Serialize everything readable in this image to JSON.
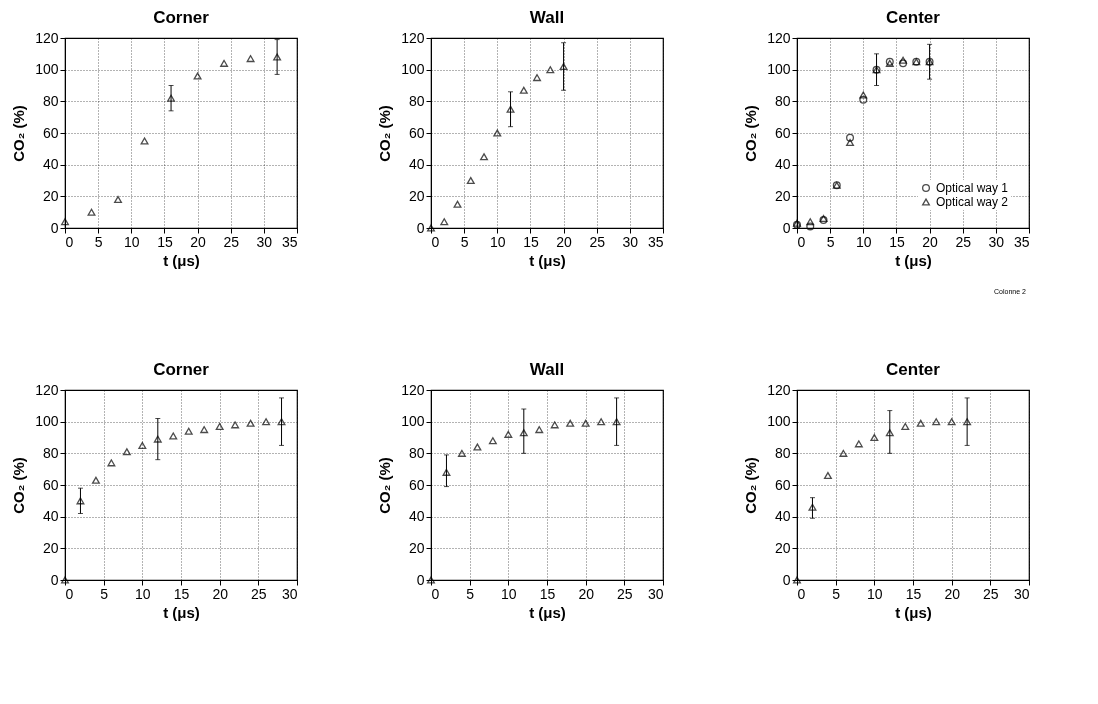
{
  "chart_data": [
    {
      "type": "scatter",
      "title": "Corner",
      "xlabel": "t (μs)",
      "ylabel": "CO₂ (%)",
      "xlim": [
        0,
        35
      ],
      "xticks": [
        0,
        5,
        10,
        15,
        20,
        25,
        30,
        35
      ],
      "ylim": [
        0,
        120
      ],
      "yticks": [
        0,
        20,
        40,
        60,
        80,
        100,
        120
      ],
      "grid": true,
      "marker": "triangle",
      "series": [
        {
          "color": "#000000",
          "x": [
            0,
            4,
            8,
            12,
            16,
            20,
            24,
            28,
            32
          ],
          "values": [
            4,
            10,
            18,
            55,
            82,
            96,
            104,
            107,
            108
          ],
          "errors": [
            null,
            null,
            null,
            null,
            [
              74,
              90
            ],
            null,
            null,
            null,
            [
              97,
              119
            ]
          ]
        }
      ]
    },
    {
      "type": "scatter",
      "title": "Wall",
      "xlabel": "t (μs)",
      "ylabel": "CO₂ (%)",
      "xlim": [
        0,
        35
      ],
      "xticks": [
        0,
        5,
        10,
        15,
        20,
        25,
        30,
        35
      ],
      "ylim": [
        0,
        120
      ],
      "yticks": [
        0,
        20,
        40,
        60,
        80,
        100,
        120
      ],
      "grid": true,
      "marker": "triangle",
      "series": [
        {
          "color": "#000000",
          "x": [
            0,
            2,
            4,
            6,
            8,
            10,
            12,
            14,
            16,
            18,
            20
          ],
          "values": [
            0,
            4,
            15,
            30,
            45,
            60,
            75,
            87,
            95,
            100,
            102
          ],
          "errors": [
            null,
            null,
            null,
            null,
            null,
            null,
            [
              64,
              86
            ],
            null,
            null,
            null,
            [
              87,
              117
            ]
          ]
        }
      ]
    },
    {
      "type": "scatter",
      "title": "Center",
      "xlabel": "t (μs)",
      "ylabel": "CO₂ (%)",
      "xlim": [
        0,
        35
      ],
      "xticks": [
        0,
        5,
        10,
        15,
        20,
        25,
        30,
        35
      ],
      "ylim": [
        0,
        120
      ],
      "yticks": [
        0,
        20,
        40,
        60,
        80,
        100,
        120
      ],
      "grid": true,
      "legend": "bottom right",
      "annotations": [
        "Colonne 2"
      ],
      "series": [
        {
          "name": "Optical way 1",
          "color": "#000000",
          "marker": "circle",
          "x": [
            0,
            2,
            4,
            6,
            8,
            10,
            12,
            14,
            16,
            18,
            20
          ],
          "values": [
            2,
            1,
            5,
            27,
            57,
            81,
            100,
            105,
            104,
            105,
            105
          ],
          "errors": [
            null,
            null,
            null,
            null,
            null,
            null,
            [
              90,
              110
            ],
            null,
            null,
            null,
            [
              94,
              116
            ]
          ]
        },
        {
          "name": "Optical way 2",
          "color": "#000000",
          "marker": "triangle",
          "x": [
            0,
            2,
            4,
            6,
            8,
            10,
            12,
            14,
            16,
            18,
            20
          ],
          "values": [
            3,
            4,
            6,
            27,
            54,
            84,
            100,
            104,
            106,
            105,
            105
          ]
        }
      ]
    },
    {
      "type": "scatter",
      "title": "Corner",
      "xlabel": "t (μs)",
      "ylabel": "CO₂ (%)",
      "xlim": [
        0,
        30
      ],
      "xticks": [
        0,
        5,
        10,
        15,
        20,
        25,
        30
      ],
      "ylim": [
        0,
        120
      ],
      "yticks": [
        0,
        20,
        40,
        60,
        80,
        100,
        120
      ],
      "grid": true,
      "marker": "triangle",
      "series": [
        {
          "color": "#000000",
          "x": [
            0,
            2,
            4,
            6,
            8,
            10,
            12,
            14,
            16,
            18,
            20,
            22,
            24,
            26,
            28
          ],
          "values": [
            0,
            50,
            63,
            74,
            81,
            85,
            89,
            91,
            94,
            95,
            97,
            98,
            99,
            100,
            100
          ],
          "errors": [
            null,
            [
              42,
              58
            ],
            null,
            null,
            null,
            null,
            [
              76,
              102
            ],
            null,
            null,
            null,
            null,
            null,
            null,
            null,
            [
              85,
              115
            ]
          ]
        }
      ]
    },
    {
      "type": "scatter",
      "title": "Wall",
      "xlabel": "t (μs)",
      "ylabel": "CO₂ (%)",
      "xlim": [
        0,
        30
      ],
      "xticks": [
        0,
        5,
        10,
        15,
        20,
        25,
        30
      ],
      "ylim": [
        0,
        120
      ],
      "yticks": [
        0,
        20,
        40,
        60,
        80,
        100,
        120
      ],
      "grid": true,
      "marker": "triangle",
      "series": [
        {
          "color": "#000000",
          "x": [
            0,
            2,
            4,
            6,
            8,
            10,
            12,
            14,
            16,
            18,
            20,
            22,
            24
          ],
          "values": [
            0,
            68,
            80,
            84,
            88,
            92,
            93,
            95,
            98,
            99,
            99,
            100,
            100
          ],
          "errors": [
            null,
            [
              59,
              79
            ],
            null,
            null,
            null,
            null,
            [
              80,
              108
            ],
            null,
            null,
            null,
            null,
            null,
            [
              85,
              115
            ]
          ]
        }
      ]
    },
    {
      "type": "scatter",
      "title": "Center",
      "xlabel": "t (μs)",
      "ylabel": "CO₂ (%)",
      "xlim": [
        0,
        30
      ],
      "xticks": [
        0,
        5,
        10,
        15,
        20,
        25,
        30
      ],
      "ylim": [
        0,
        120
      ],
      "yticks": [
        0,
        20,
        40,
        60,
        80,
        100,
        120
      ],
      "grid": true,
      "marker": "triangle",
      "series": [
        {
          "color": "#000000",
          "x": [
            0,
            2,
            4,
            6,
            8,
            10,
            12,
            14,
            16,
            18,
            20,
            22
          ],
          "values": [
            0,
            46,
            66,
            80,
            86,
            90,
            93,
            97,
            99,
            100,
            100,
            100
          ],
          "errors": [
            null,
            [
              39,
              52
            ],
            null,
            null,
            null,
            null,
            [
              80,
              107
            ],
            null,
            null,
            null,
            null,
            [
              85,
              115
            ]
          ]
        }
      ]
    }
  ]
}
